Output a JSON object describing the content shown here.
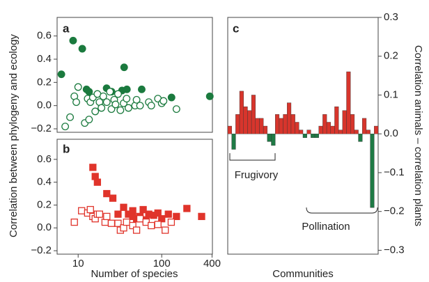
{
  "chart_data": [
    {
      "type": "scatter",
      "label": "a",
      "ylabel": "Correlation between phylogeny and ecology",
      "xscale": "log",
      "xlim": [
        5.6,
        404
      ],
      "ylim": [
        -0.23,
        0.76
      ],
      "yticks": [
        {
          "value": -0.2,
          "label": "−0.2"
        },
        {
          "value": 0,
          "label": "0.0"
        },
        0.2,
        0.4,
        0.6
      ],
      "series": [
        {
          "color": "#1b7a3e",
          "marker": "circle",
          "filled": true,
          "x": [
            6.3,
            8.7,
            11.2,
            12.6,
            13.5,
            21.9,
            25.1,
            33.5,
            35.5,
            38.3,
            57.6,
            131,
            376
          ],
          "values": [
            0.27,
            0.56,
            0.49,
            0.14,
            0.12,
            0.15,
            0.12,
            0.13,
            0.33,
            0.14,
            0.14,
            0.07,
            0.08
          ]
        },
        {
          "color": "#1b7a3e",
          "marker": "circle",
          "filled": false,
          "x": [
            7,
            8,
            9,
            9.5,
            10,
            12,
            13,
            13.5,
            14,
            15,
            16,
            17,
            18,
            19,
            20,
            22,
            24,
            25,
            27,
            28,
            30,
            32,
            35,
            38,
            40,
            48,
            50,
            55,
            70,
            75,
            90,
            100,
            105,
            150
          ],
          "values": [
            -0.18,
            -0.1,
            0.08,
            0.03,
            0.16,
            -0.15,
            0.06,
            -0.12,
            0.03,
            0.07,
            -0.05,
            0.1,
            0.03,
            -0.02,
            0.08,
            0.03,
            0.12,
            -0.03,
            0.05,
            0.01,
            0.1,
            -0.04,
            0.02,
            0.06,
            -0.02,
            0.0,
            0.05,
            0.0,
            0.03,
            0.0,
            0.06,
            0.02,
            0.04,
            -0.03
          ]
        }
      ]
    },
    {
      "type": "scatter",
      "label": "b",
      "xlabel": "Number of species",
      "xscale": "log",
      "xlim": [
        5.6,
        404
      ],
      "ylim": [
        -0.23,
        0.776
      ],
      "xticks": [
        10,
        100,
        400
      ],
      "yticks": [
        {
          "value": -0.2,
          "label": "−0.2"
        },
        {
          "value": 0,
          "label": "0.0"
        },
        0.2,
        0.4,
        0.6
      ],
      "series": [
        {
          "color": "#e0342b",
          "marker": "square",
          "filled": true,
          "x": [
            15,
            16,
            17,
            22,
            26,
            30,
            35,
            40,
            45,
            45,
            50,
            55,
            60,
            65,
            70,
            80,
            90,
            100,
            120,
            150,
            200,
            300
          ],
          "values": [
            0.53,
            0.45,
            0.4,
            0.3,
            0.26,
            0.12,
            0.18,
            0.12,
            0.1,
            0.15,
            0.08,
            0.1,
            0.16,
            0.07,
            0.12,
            0.11,
            0.13,
            0.08,
            0.12,
            0.1,
            0.17,
            0.1
          ]
        },
        {
          "color": "#e0342b",
          "marker": "square",
          "filled": false,
          "x": [
            9,
            11,
            13,
            14,
            15,
            16,
            17,
            18,
            21,
            22,
            25,
            30,
            32,
            35,
            38,
            45,
            50,
            55,
            65,
            75,
            90,
            110,
            130
          ],
          "values": [
            0.05,
            0.15,
            0.13,
            0.16,
            0.1,
            0.08,
            0.12,
            0.12,
            0.05,
            0.1,
            0.04,
            0.04,
            -0.02,
            0.0,
            0.05,
            0.02,
            -0.02,
            0.08,
            0.05,
            0.02,
            0.03,
            -0.02,
            0.05
          ]
        }
      ]
    },
    {
      "type": "bar",
      "label": "c",
      "xlabel": "Communities",
      "ylabel": "Correlation animals – correlation plants",
      "yaxis_side": "right",
      "ylim": [
        -0.31,
        0.3
      ],
      "yticks": [
        {
          "value": -0.3,
          "label": "−0.3"
        },
        {
          "value": -0.2,
          "label": "−0.2"
        },
        {
          "value": -0.1,
          "label": "−0.1"
        },
        {
          "value": 0,
          "label": "0.0"
        },
        0.1,
        0.2,
        0.3
      ],
      "color_positive": "#d7352c",
      "color_negative": "#1f7a45",
      "values": [
        0.02,
        -0.04,
        0.05,
        0.11,
        0.07,
        0.06,
        0.1,
        0.04,
        0.04,
        0.02,
        -0.02,
        -0.03,
        0.05,
        0.04,
        0.05,
        0.08,
        0.05,
        0.03,
        0.01,
        -0.01,
        0.01,
        -0.01,
        -0.01,
        0.02,
        0.05,
        0.03,
        0.02,
        0.07,
        0.01,
        0.06,
        0.16,
        0.05,
        0.01,
        -0.02,
        0.04,
        0.01,
        -0.19,
        0.02
      ],
      "annotations": [
        "Frugivory",
        "Pollination"
      ]
    }
  ]
}
